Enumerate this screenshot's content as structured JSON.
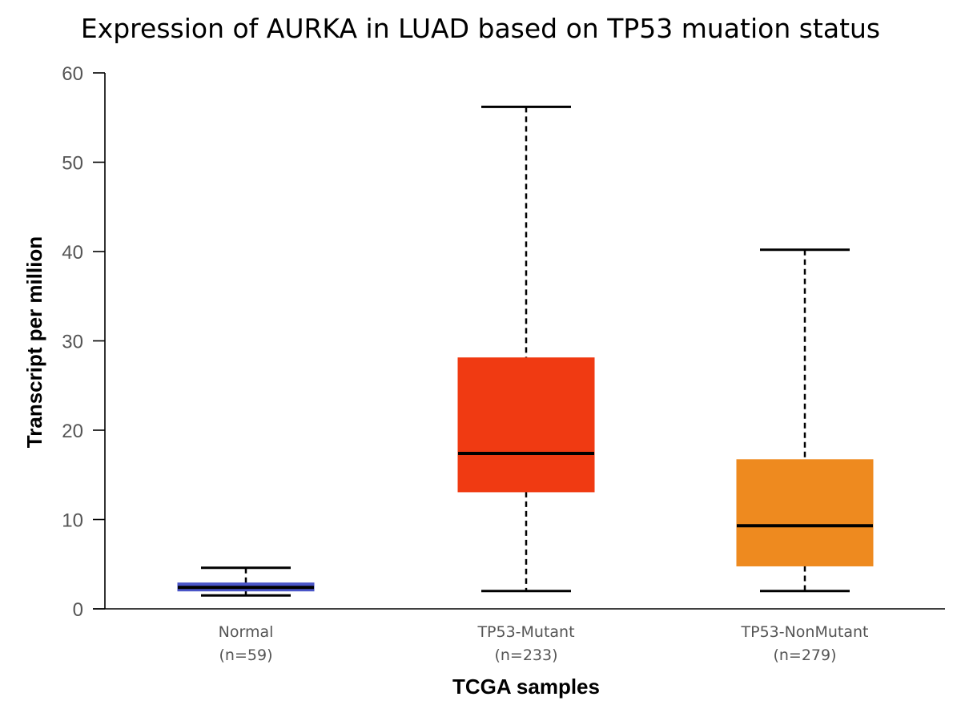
{
  "chart_data": {
    "type": "boxplot",
    "title": "Expression of AURKA in LUAD based on TP53 muation status",
    "xlabel": "TCGA samples",
    "ylabel": "Transcript per million",
    "ylim": [
      0,
      60
    ],
    "yticks": [
      "0",
      "10",
      "20",
      "30",
      "40",
      "50",
      "60"
    ],
    "grid": false,
    "categories": [
      {
        "name": "Normal",
        "count_label": "(n=59)"
      },
      {
        "name": "TP53-Mutant",
        "count_label": "(n=233)"
      },
      {
        "name": "TP53-NonMutant",
        "count_label": "(n=279)"
      }
    ],
    "boxes": [
      {
        "whisker_low": 1.5,
        "q1": 2.0,
        "median": 2.4,
        "q3": 2.9,
        "whisker_high": 4.6,
        "color": "#4A55C8",
        "box_edge_color": "#4A55C8"
      },
      {
        "whisker_low": 2.0,
        "q1": 13.1,
        "median": 17.4,
        "q3": 28.1,
        "whisker_high": 56.2,
        "color": "#F03A12",
        "box_edge_color": "#F03A12"
      },
      {
        "whisker_low": 2.0,
        "q1": 4.8,
        "median": 9.3,
        "q3": 16.7,
        "whisker_high": 40.2,
        "color": "#EE8A1F",
        "box_edge_color": "#EE8A1F"
      }
    ]
  }
}
